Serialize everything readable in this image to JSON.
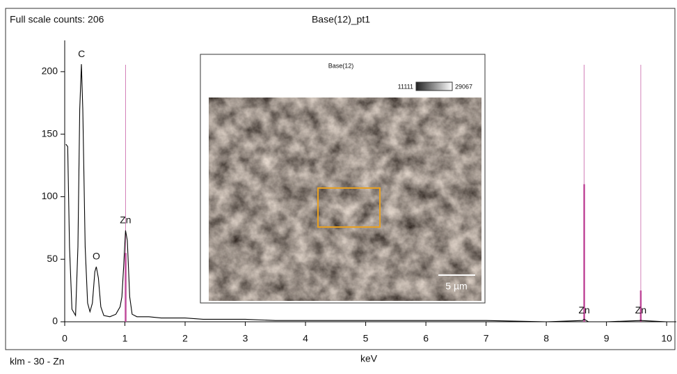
{
  "chart_data": {
    "type": "line",
    "title": "Base(12)_pt1",
    "subtitle": "Full scale counts: 206",
    "x_label": "keV",
    "footer": "klm - 30 - Zn",
    "x": [
      0.02,
      0.05,
      0.08,
      0.12,
      0.18,
      0.22,
      0.25,
      0.277,
      0.3,
      0.34,
      0.38,
      0.42,
      0.46,
      0.5,
      0.525,
      0.56,
      0.6,
      0.65,
      0.75,
      0.85,
      0.92,
      0.95,
      0.98,
      1.01,
      1.04,
      1.08,
      1.12,
      1.2,
      1.4,
      1.6,
      1.8,
      2.0,
      2.3,
      2.6,
      3.0,
      3.5,
      4.0,
      5.0,
      6.0,
      7.0,
      8.0,
      8.6,
      8.63,
      8.7,
      9.0,
      9.57,
      10.0
    ],
    "values": [
      142,
      140,
      60,
      10,
      5,
      60,
      170,
      206,
      170,
      60,
      15,
      8,
      15,
      40,
      44,
      35,
      12,
      5,
      4,
      6,
      12,
      20,
      45,
      73,
      65,
      20,
      6,
      4,
      4,
      3,
      3,
      3,
      2,
      2,
      2,
      1,
      1,
      1,
      1,
      1,
      0,
      1,
      2,
      0,
      0,
      1,
      0
    ],
    "color": "#000000",
    "xlim": [
      0,
      10.16
    ],
    "ylim": [
      0,
      225
    ],
    "xticks": [
      0,
      1,
      2,
      3,
      4,
      5,
      6,
      7,
      8,
      9,
      10
    ],
    "yticks": [
      0,
      50,
      100,
      150,
      200
    ],
    "annotations": [
      {
        "text": "C",
        "x": 0.28,
        "y": 206
      },
      {
        "text": "O",
        "x": 0.525,
        "y": 44
      },
      {
        "text": "Zn",
        "x": 1.01,
        "y": 73
      },
      {
        "text": "Zn",
        "x": 8.63,
        "y": 1
      },
      {
        "text": "Zn",
        "x": 9.57,
        "y": 1
      }
    ],
    "klm_lines": [
      {
        "energy": 1.012,
        "intensity": 55
      },
      {
        "energy": 8.63,
        "intensity": 110
      },
      {
        "energy": 9.57,
        "intensity": 25
      }
    ],
    "klm_color": "#c04a9a"
  },
  "inset": {
    "title": "Base(12)",
    "colorbar_min": 11111,
    "colorbar_max": 29067,
    "scale_bar": "5 µm"
  }
}
